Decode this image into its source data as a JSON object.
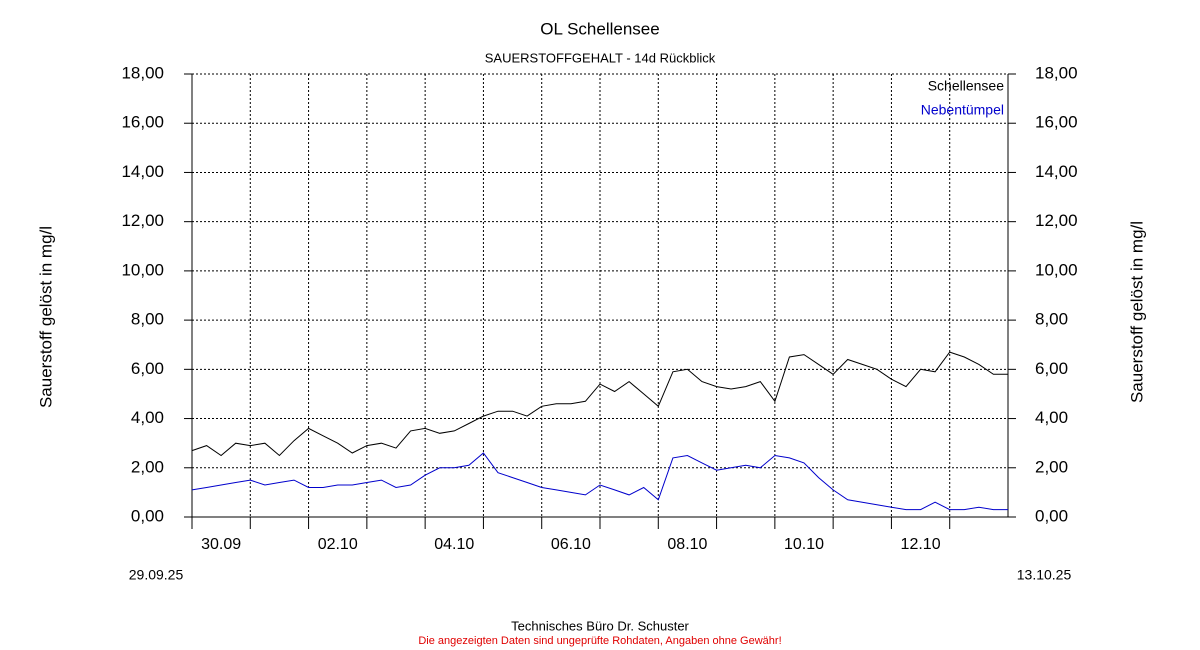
{
  "chart_data": {
    "type": "line",
    "title": "OL Schellensee",
    "subtitle": "SAUERSTOFFGEHALT - 14d Rückblick",
    "y_label": "Sauerstoff gelöst in mg/l",
    "y2_label": "Sauerstoff gelöst in mg/l",
    "start_label": "29.09.25",
    "end_label": "13.10.25",
    "footer": "Technisches Büro Dr. Schuster",
    "disclaimer": "Die angezeigten Daten sind ungeprüfte Rohdaten, Angaben ohne Gewähr!",
    "legend_position": "upper right",
    "grid": true,
    "xlim": [
      "2025-09-29T12:00",
      "2025-10-13T12:00"
    ],
    "xticks": [
      {
        "value": "2025-09-30T00:00",
        "label": "30.09"
      },
      {
        "value": "2025-10-02T00:00",
        "label": "02.10"
      },
      {
        "value": "2025-10-04T00:00",
        "label": "04.10"
      },
      {
        "value": "2025-10-06T00:00",
        "label": "06.10"
      },
      {
        "value": "2025-10-08T00:00",
        "label": "08.10"
      },
      {
        "value": "2025-10-10T00:00",
        "label": "10.10"
      },
      {
        "value": "2025-10-12T00:00",
        "label": "12.10"
      }
    ],
    "xgrid": [
      "2025-09-30T12:00",
      "2025-10-01T12:00",
      "2025-10-02T12:00",
      "2025-10-03T12:00",
      "2025-10-04T12:00",
      "2025-10-05T12:00",
      "2025-10-06T12:00",
      "2025-10-07T12:00",
      "2025-10-08T12:00",
      "2025-10-09T12:00",
      "2025-10-10T12:00",
      "2025-10-11T12:00",
      "2025-10-12T12:00"
    ],
    "ylim": [
      0,
      18
    ],
    "yticks": [
      {
        "value": 0,
        "label": "0,00"
      },
      {
        "value": 2,
        "label": "2,00"
      },
      {
        "value": 4,
        "label": "4,00"
      },
      {
        "value": 6,
        "label": "6,00"
      },
      {
        "value": 8,
        "label": "8,00"
      },
      {
        "value": 10,
        "label": "10,00"
      },
      {
        "value": 12,
        "label": "12,00"
      },
      {
        "value": 14,
        "label": "14,00"
      },
      {
        "value": 16,
        "label": "16,00"
      },
      {
        "value": 18,
        "label": "18,00"
      }
    ],
    "y2lim": [
      0,
      18
    ],
    "y2ticks": [
      {
        "value": 0,
        "label": "0,00"
      },
      {
        "value": 2,
        "label": "2,00"
      },
      {
        "value": 4,
        "label": "4,00"
      },
      {
        "value": 6,
        "label": "6,00"
      },
      {
        "value": 8,
        "label": "8,00"
      },
      {
        "value": 10,
        "label": "10,00"
      },
      {
        "value": 12,
        "label": "12,00"
      },
      {
        "value": 14,
        "label": "14,00"
      },
      {
        "value": 16,
        "label": "16,00"
      },
      {
        "value": 18,
        "label": "18,00"
      }
    ],
    "x": [
      "2025-09-29T12:00",
      "2025-09-29T18:00",
      "2025-09-30T00:00",
      "2025-09-30T06:00",
      "2025-09-30T12:00",
      "2025-09-30T18:00",
      "2025-10-01T00:00",
      "2025-10-01T06:00",
      "2025-10-01T12:00",
      "2025-10-01T18:00",
      "2025-10-02T00:00",
      "2025-10-02T06:00",
      "2025-10-02T12:00",
      "2025-10-02T18:00",
      "2025-10-03T00:00",
      "2025-10-03T06:00",
      "2025-10-03T12:00",
      "2025-10-03T18:00",
      "2025-10-04T00:00",
      "2025-10-04T06:00",
      "2025-10-04T12:00",
      "2025-10-04T18:00",
      "2025-10-05T00:00",
      "2025-10-05T06:00",
      "2025-10-05T12:00",
      "2025-10-05T18:00",
      "2025-10-06T00:00",
      "2025-10-06T06:00",
      "2025-10-06T12:00",
      "2025-10-06T18:00",
      "2025-10-07T00:00",
      "2025-10-07T06:00",
      "2025-10-07T12:00",
      "2025-10-07T18:00",
      "2025-10-08T00:00",
      "2025-10-08T06:00",
      "2025-10-08T12:00",
      "2025-10-08T18:00",
      "2025-10-09T00:00",
      "2025-10-09T06:00",
      "2025-10-09T12:00",
      "2025-10-09T18:00",
      "2025-10-10T00:00",
      "2025-10-10T06:00",
      "2025-10-10T12:00",
      "2025-10-10T18:00",
      "2025-10-11T00:00",
      "2025-10-11T06:00",
      "2025-10-11T12:00",
      "2025-10-11T18:00",
      "2025-10-12T00:00",
      "2025-10-12T06:00",
      "2025-10-12T12:00",
      "2025-10-12T18:00",
      "2025-10-13T00:00",
      "2025-10-13T06:00",
      "2025-10-13T12:00"
    ],
    "series": [
      {
        "name": "Schellensee",
        "color": "#000000",
        "values": [
          2.7,
          2.9,
          2.5,
          3.0,
          2.9,
          3.0,
          2.5,
          3.1,
          3.6,
          3.3,
          3.0,
          2.6,
          2.9,
          3.0,
          2.8,
          3.5,
          3.6,
          3.4,
          3.5,
          3.8,
          4.1,
          4.3,
          4.3,
          4.1,
          4.5,
          4.6,
          4.6,
          4.7,
          5.4,
          5.1,
          5.5,
          5.0,
          4.5,
          5.9,
          6.0,
          5.5,
          5.3,
          5.2,
          5.3,
          5.5,
          4.7,
          6.5,
          6.6,
          6.2,
          5.8,
          6.4,
          6.2,
          6.0,
          5.6,
          5.3,
          6.0,
          5.9,
          6.7,
          6.5,
          6.2,
          5.8,
          5.8
        ]
      },
      {
        "name": "Nebentümpel",
        "color": "#0000cc",
        "values": [
          1.1,
          1.2,
          1.3,
          1.4,
          1.5,
          1.3,
          1.4,
          1.5,
          1.2,
          1.2,
          1.3,
          1.3,
          1.4,
          1.5,
          1.2,
          1.3,
          1.7,
          2.0,
          2.0,
          2.1,
          2.6,
          1.8,
          1.6,
          1.4,
          1.2,
          1.1,
          1.0,
          0.9,
          1.3,
          1.1,
          0.9,
          1.2,
          0.7,
          2.4,
          2.5,
          2.2,
          1.9,
          2.0,
          2.1,
          2.0,
          2.5,
          2.4,
          2.2,
          1.6,
          1.1,
          0.7,
          0.6,
          0.5,
          0.4,
          0.3,
          0.3,
          0.6,
          0.3,
          0.3,
          0.4,
          0.3,
          0.3
        ]
      }
    ]
  }
}
